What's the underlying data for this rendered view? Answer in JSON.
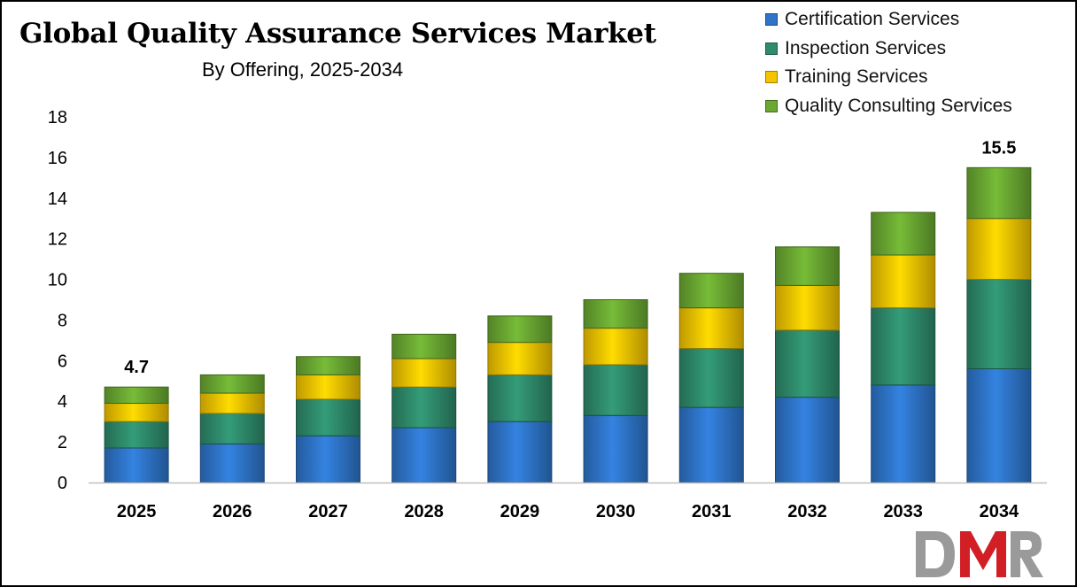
{
  "chart_data": {
    "type": "bar",
    "stacked": true,
    "title": "Global Quality Assurance Services Market",
    "subtitle": "By Offering, 2025-2034",
    "xlabel": "",
    "ylabel": "",
    "categories": [
      "2025",
      "2026",
      "2027",
      "2028",
      "2029",
      "2030",
      "2031",
      "2032",
      "2033",
      "2034"
    ],
    "series": [
      {
        "name": "Certification Services",
        "color": "#2e75c9",
        "values": [
          1.7,
          1.9,
          2.3,
          2.7,
          3.0,
          3.3,
          3.7,
          4.2,
          4.8,
          5.6
        ]
      },
      {
        "name": "Inspection Services",
        "color": "#2e8b6b",
        "values": [
          1.3,
          1.5,
          1.8,
          2.0,
          2.3,
          2.5,
          2.9,
          3.3,
          3.8,
          4.4
        ]
      },
      {
        "name": "Training Services",
        "color": "#f5c400",
        "values": [
          0.9,
          1.0,
          1.2,
          1.4,
          1.6,
          1.8,
          2.0,
          2.2,
          2.6,
          3.0
        ]
      },
      {
        "name": "Quality Consulting Services",
        "color": "#6aa832",
        "values": [
          0.8,
          0.9,
          0.9,
          1.2,
          1.3,
          1.4,
          1.7,
          1.9,
          2.1,
          2.5
        ]
      }
    ],
    "totals_labels": [
      {
        "category": "2025",
        "value": 4.7,
        "text": "4.7"
      },
      {
        "category": "2034",
        "value": 15.5,
        "text": "15.5"
      }
    ],
    "yticks": [
      0,
      2,
      4,
      6,
      8,
      10,
      12,
      14,
      16,
      18
    ],
    "ylim": [
      0,
      18
    ],
    "grid": false,
    "legend_position": "top-right"
  },
  "logo": {
    "text": "DMR",
    "colors": [
      "#9a9a9a",
      "#d21f26"
    ]
  }
}
